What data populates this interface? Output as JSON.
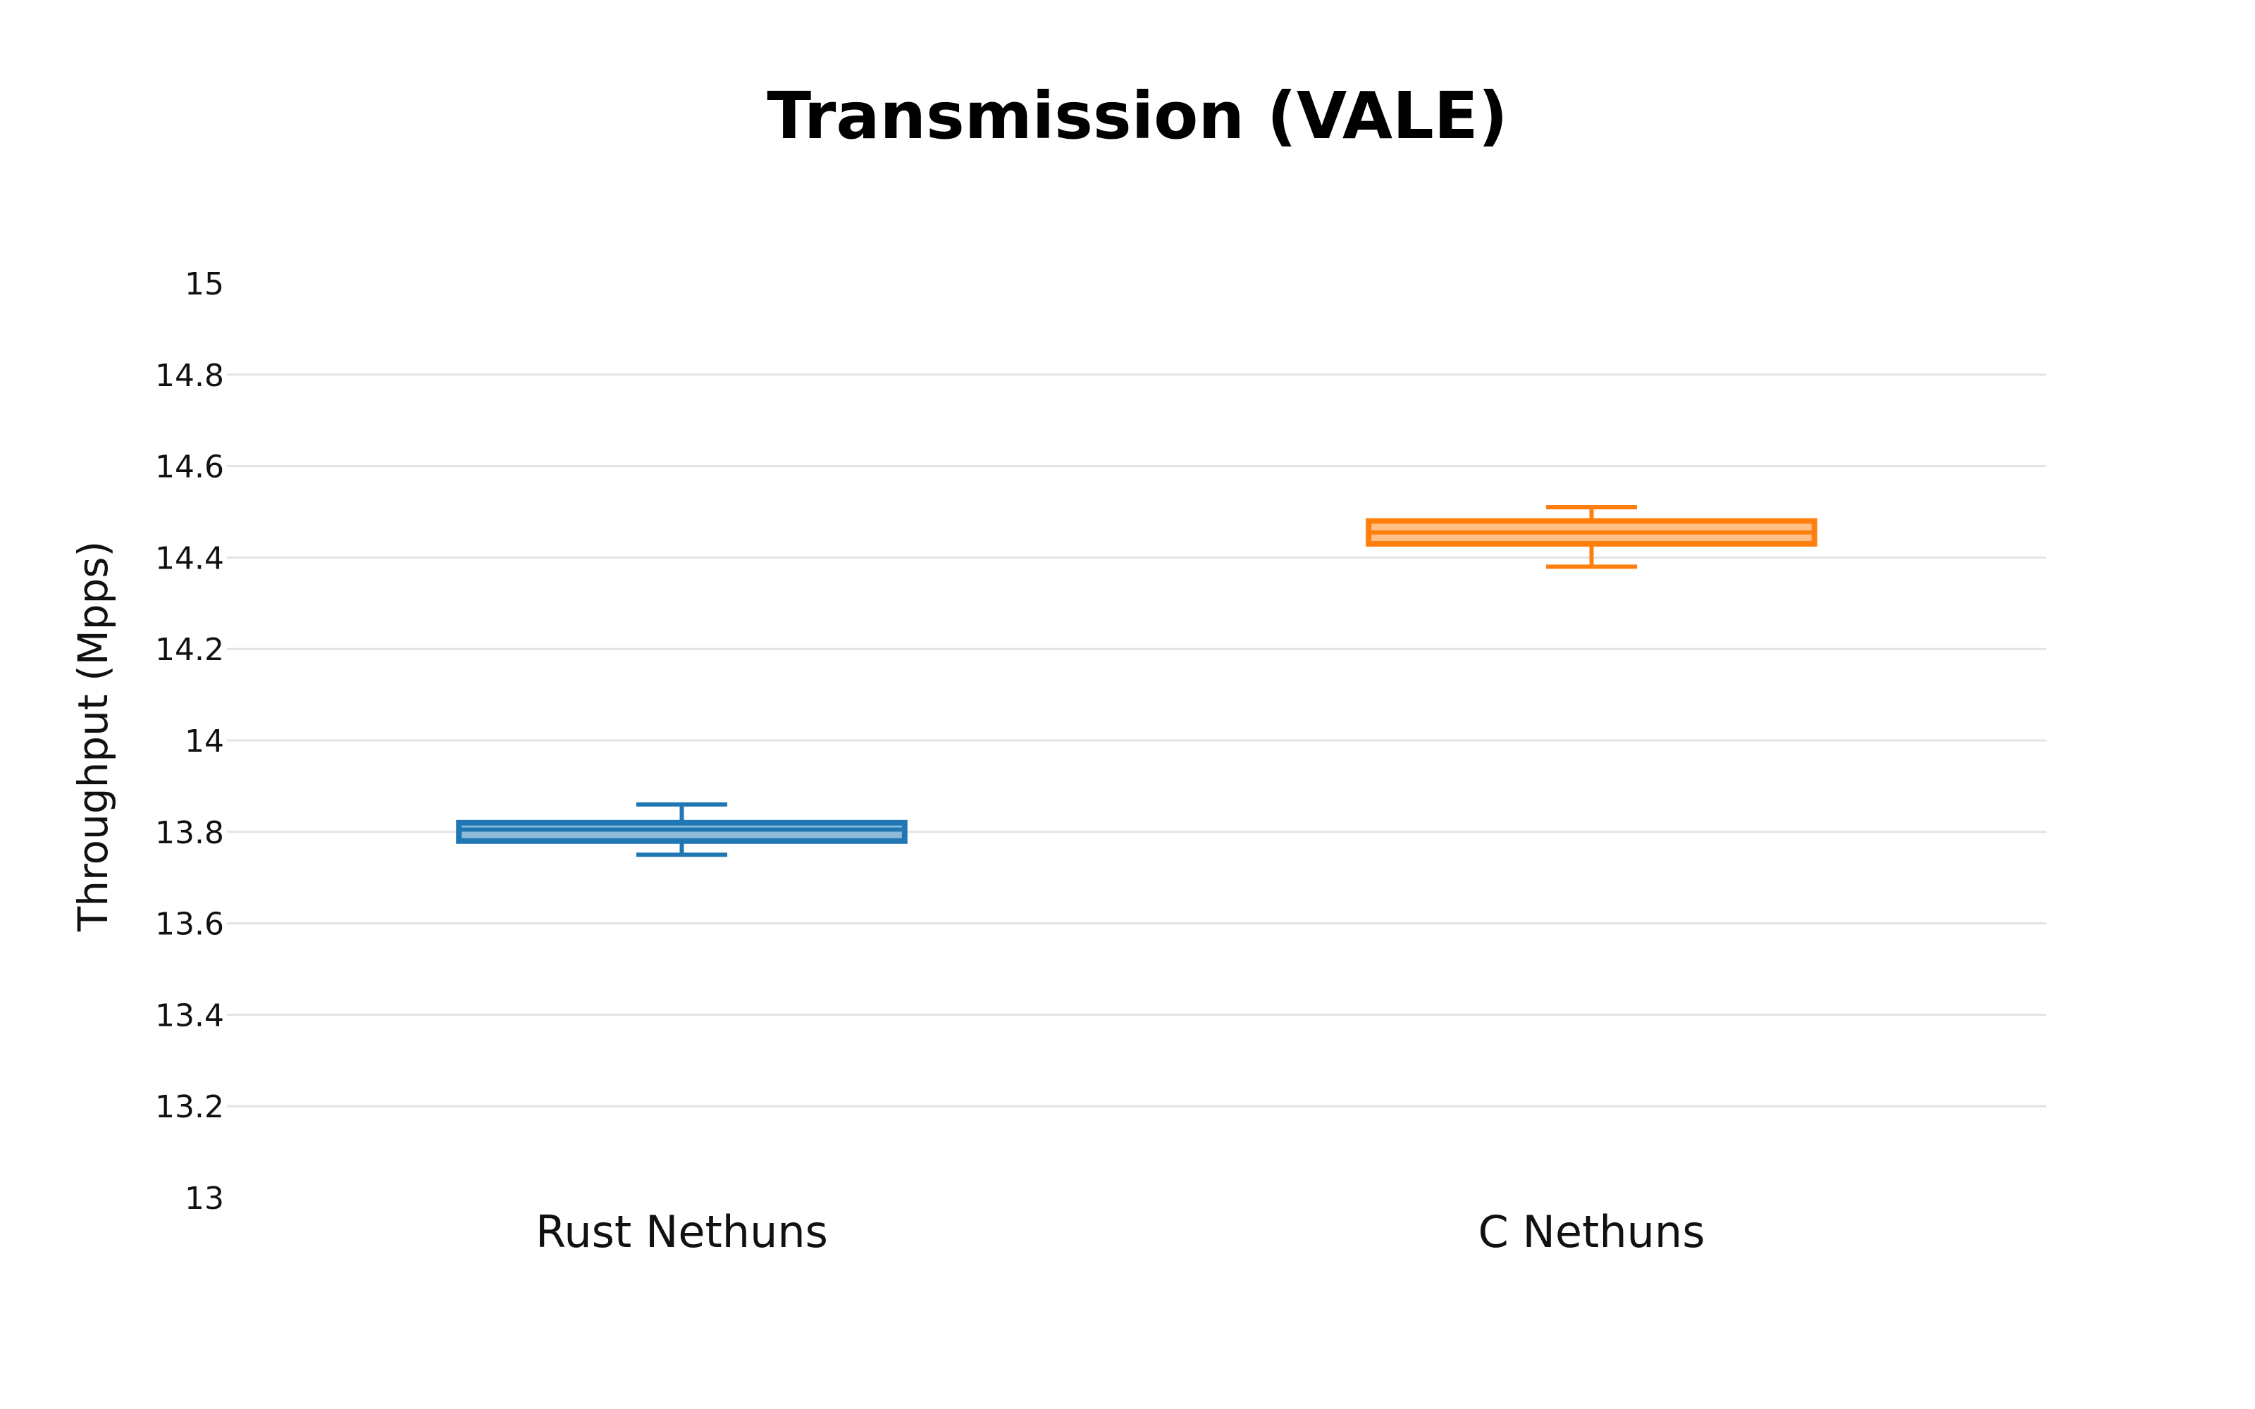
{
  "chart_data": {
    "type": "box",
    "title": "Transmission (VALE)",
    "xlabel": "",
    "ylabel": "Throughput (Mpps)",
    "ylim": [
      13,
      15
    ],
    "yticks": [
      "13",
      "13.2",
      "13.4",
      "13.6",
      "13.8",
      "14",
      "14.2",
      "14.4",
      "14.6",
      "14.8",
      "15"
    ],
    "ytick_values": [
      13,
      13.2,
      13.4,
      13.6,
      13.8,
      14,
      14.2,
      14.4,
      14.6,
      14.8,
      15
    ],
    "grid": true,
    "categories": [
      "Rust Nethuns",
      "C Nethuns"
    ],
    "series": [
      {
        "category": "Rust Nethuns",
        "color": "#1f77b4",
        "fill": "#8fbbd9",
        "min": 13.75,
        "q1": 13.78,
        "median": 13.805,
        "q3": 13.82,
        "max": 13.86
      },
      {
        "category": "C Nethuns",
        "color": "#ff7f0e",
        "fill": "#ffbf87",
        "min": 14.38,
        "q1": 14.43,
        "median": 14.455,
        "q3": 14.48,
        "max": 14.51
      }
    ]
  }
}
